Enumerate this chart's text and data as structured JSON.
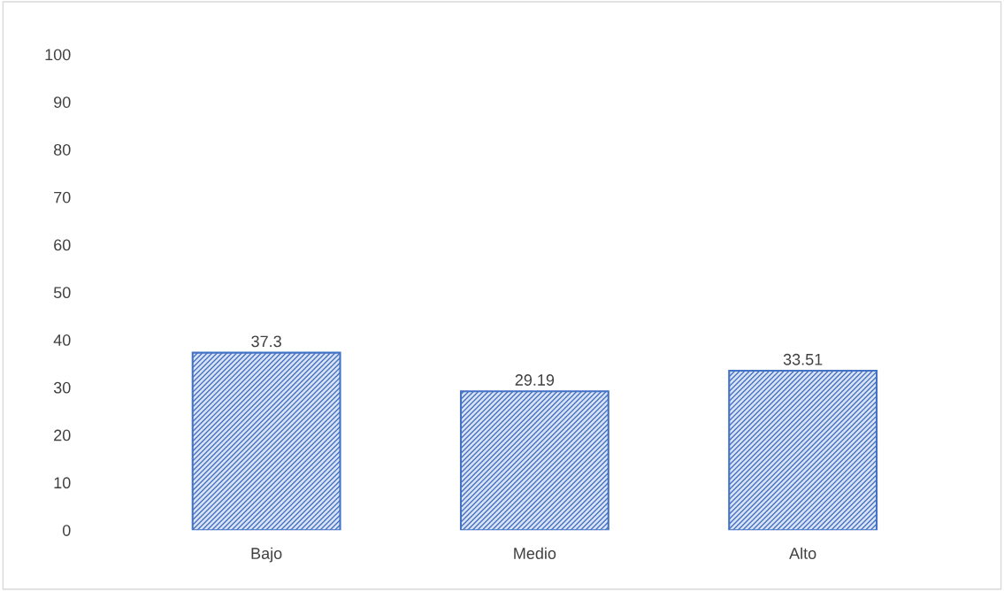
{
  "chart_data": {
    "type": "bar",
    "categories": [
      "Bajo",
      "Medio",
      "Alto"
    ],
    "values": [
      37.3,
      29.19,
      33.51
    ],
    "color": "#4472c4",
    "ylim": [
      0,
      100
    ],
    "yticks": [
      0,
      10,
      20,
      30,
      40,
      50,
      60,
      70,
      80,
      90,
      100
    ],
    "data_labels": true,
    "grid": false,
    "legend": false
  }
}
